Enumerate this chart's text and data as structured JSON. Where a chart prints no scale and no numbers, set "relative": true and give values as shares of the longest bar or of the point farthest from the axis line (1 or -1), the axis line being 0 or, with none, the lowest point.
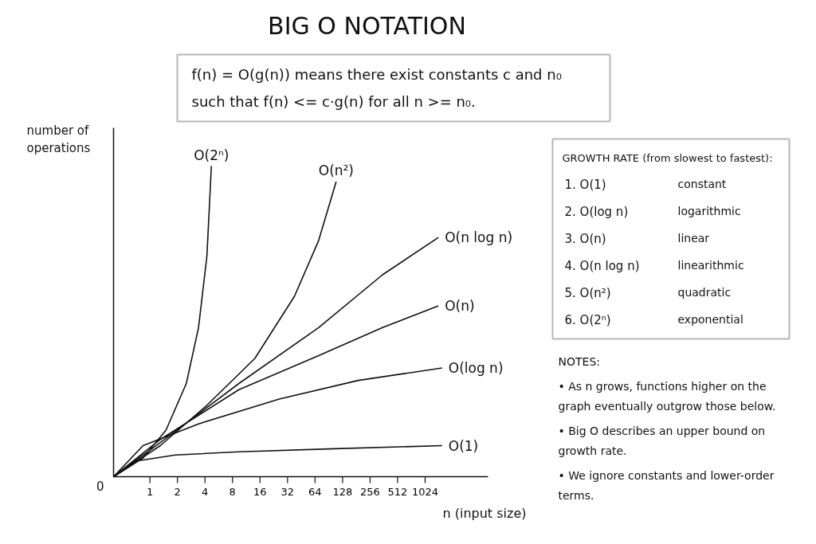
{
  "chart_data": {
    "type": "line",
    "relative": true,
    "title": "BIG O NOTATION",
    "xlabel": "n (input size)",
    "ylabel": "number of operations",
    "log": "x",
    "xlim": [
      0.4,
      5000
    ],
    "xticks": [
      1,
      2,
      4,
      8,
      16,
      32,
      64,
      128,
      256,
      512,
      1024
    ],
    "grid": false,
    "legend": false,
    "marker": "none",
    "line_style": "solid",
    "series": [
      {
        "name": "O(2ⁿ)",
        "color": "#111111",
        "x": [
          0.4,
          0.84,
          1.5,
          2.5,
          3.4,
          4.2,
          4.7
        ],
        "values": [
          0,
          0.06,
          0.15,
          0.3,
          0.48,
          0.71,
          1
        ]
      },
      {
        "name": "O(n²)",
        "color": "#111111",
        "x": [
          0.4,
          1.3,
          4.2,
          14,
          38,
          70,
          109
        ],
        "values": [
          0,
          0.1,
          0.23,
          0.38,
          0.58,
          0.76,
          0.95
        ]
      },
      {
        "name": "O(n log n)",
        "color": "#111111",
        "x": [
          0.4,
          1.3,
          9.4,
          70,
          350,
          1430
        ],
        "values": [
          0,
          0.11,
          0.3,
          0.48,
          0.65,
          0.77
        ]
      },
      {
        "name": "O(n)",
        "color": "#111111",
        "x": [
          0.4,
          1.3,
          9.4,
          70,
          350,
          1430
        ],
        "values": [
          0,
          0.12,
          0.28,
          0.39,
          0.48,
          0.55
        ]
      },
      {
        "name": "O(log n)",
        "color": "#111111",
        "x": [
          0.4,
          0.84,
          3.4,
          26,
          190,
          1570
        ],
        "values": [
          0,
          0.1,
          0.17,
          0.25,
          0.31,
          0.35
        ]
      },
      {
        "name": "O(1)",
        "color": "#111111",
        "x": [
          0.4,
          0.69,
          1.9,
          9.4,
          105,
          1570
        ],
        "values": [
          0,
          0.05,
          0.07,
          0.08,
          0.09,
          0.1
        ]
      }
    ],
    "annotations": [
      "0",
      "f(n) = O(g(n))  means there exist constants c and n₀",
      "such that f(n) <= c·g(n) for all n >= n₀.",
      "GROWTH RATE (from slowest to fastest):",
      "1.  O(1)",
      "constant",
      "2.  O(log n)",
      "logarithmic",
      "3.  O(n)",
      "linear",
      "4.  O(n log n)",
      "linearithmic",
      "5.  O(n²)",
      "quadratic",
      "6.  O(2ⁿ)",
      "exponential",
      "NOTES:",
      "• As n grows, functions higher on the graph eventually outgrow those below.",
      "• Big O describes an upper bound on growth rate.",
      "• We ignore constants and lower-order terms."
    ]
  }
}
